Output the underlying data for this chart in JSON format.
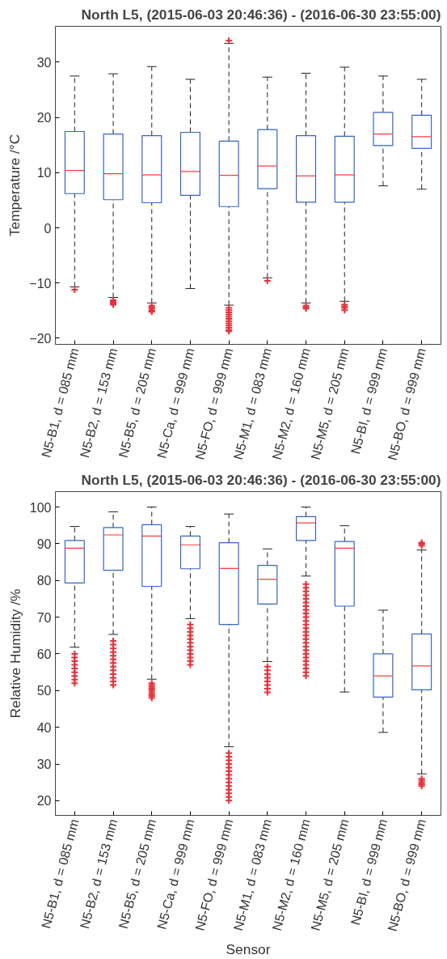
{
  "chart_data": [
    {
      "type": "box",
      "title": "North L5, (2015-06-03 20:46:36) - (2016-06-30 23:55:00)",
      "ylabel": "Temperature /°C",
      "categories": [
        "N5-B1, d = 085 mm",
        "N5-B2, d = 153 mm",
        "N5-B5, d = 205 mm",
        "N5-Ca, d = 999 mm",
        "N5-FO, d = 999 mm",
        "N5-M1, d = 083 mm",
        "N5-M2, d = 160 mm",
        "N5-M5, d = 205 mm",
        "N5-BI, d = 999 mm",
        "N5-BO, d = 999 mm"
      ],
      "ylim": [
        -21.1,
        36.5
      ],
      "yticks": [
        -20,
        -10,
        0,
        10,
        20,
        30
      ],
      "grid": false,
      "marker": "cross",
      "series": [
        {
          "color": "#3565c4",
          "boxes": [
            {
              "low": -10.7,
              "q1": 6.2,
              "median": 10.4,
              "q3": 17.45,
              "high": 27.5,
              "outliers": [
                -11.2
              ]
            },
            {
              "low": -12.6,
              "q1": 5.1,
              "median": 9.8,
              "q3": 17.0,
              "high": 27.9,
              "outliers": [
                -13.1,
                -13.4,
                -13.7,
                -13.9
              ]
            },
            {
              "low": -13.6,
              "q1": 4.55,
              "median": 9.6,
              "q3": 16.7,
              "high": 29.2,
              "outliers": [
                -14.1,
                -14.4,
                -14.7,
                -15.0,
                -15.2
              ]
            },
            {
              "low": -11.0,
              "q1": 5.9,
              "median": 10.2,
              "q3": 17.3,
              "high": 26.9
            },
            {
              "low": -14.0,
              "q1": 3.85,
              "median": 9.5,
              "q3": 15.7,
              "high": 33.4,
              "outliers": [
                33.9,
                -14.5,
                -14.9,
                -15.3,
                -15.7,
                -16.1,
                -16.5,
                -16.9,
                -17.3,
                -17.7,
                -18.1,
                -18.5,
                -18.7
              ]
            },
            {
              "low": -9.05,
              "q1": 7.1,
              "median": 11.2,
              "q3": 17.8,
              "high": 27.3,
              "outliers": [
                -9.6
              ]
            },
            {
              "low": -13.6,
              "q1": 4.65,
              "median": 9.4,
              "q3": 16.7,
              "high": 28.0,
              "outliers": [
                -14.1,
                -14.4,
                -14.6
              ]
            },
            {
              "low": -13.3,
              "q1": 4.65,
              "median": 9.6,
              "q3": 16.6,
              "high": 29.1,
              "outliers": [
                -13.9,
                -14.2,
                -14.5,
                -14.9
              ]
            },
            {
              "low": 7.6,
              "q1": 14.9,
              "median": 17.0,
              "q3": 20.9,
              "high": 27.5
            },
            {
              "low": 7.0,
              "q1": 14.4,
              "median": 16.5,
              "q3": 20.4,
              "high": 26.9
            }
          ]
        }
      ]
    },
    {
      "type": "box",
      "title": "North L5, (2015-06-03 20:46:36) - (2016-06-30 23:55:00)",
      "ylabel": "Relative Humidity /%",
      "xlabel": "Sensor",
      "categories": [
        "N5-B1, d = 085 mm",
        "N5-B2, d = 153 mm",
        "N5-B5, d = 205 mm",
        "N5-Ca, d = 999 mm",
        "N5-FO, d = 999 mm",
        "N5-M1, d = 083 mm",
        "N5-M2, d = 160 mm",
        "N5-M5, d = 205 mm",
        "N5-BI, d = 999 mm",
        "N5-BO, d = 999 mm"
      ],
      "ylim": [
        16,
        104.2
      ],
      "yticks": [
        20,
        30,
        40,
        50,
        60,
        70,
        80,
        90,
        100
      ],
      "grid": false,
      "marker": "cross",
      "series": [
        {
          "color": "#3565c4",
          "boxes": [
            {
              "low": 61.8,
              "q1": 79.3,
              "median": 88.8,
              "q3": 90.9,
              "high": 94.7,
              "outliers": [
                52,
                53,
                54,
                55,
                56,
                57,
                58,
                59,
                60
              ]
            },
            {
              "low": 65.3,
              "q1": 82.8,
              "median": 92.4,
              "q3": 94.4,
              "high": 98.7,
              "outliers": [
                51.5,
                52.5,
                53.5,
                54.5,
                55.5,
                56.5,
                57.5,
                58.5,
                59.5,
                60.5,
                61.5,
                62.5,
                63.5
              ]
            },
            {
              "low": 53.1,
              "q1": 78.4,
              "median": 92.1,
              "q3": 95.2,
              "high": 100,
              "outliers": [
                48,
                48.5,
                49,
                49.5,
                50,
                50.5,
                51,
                51.5,
                52
              ]
            },
            {
              "low": 69.6,
              "q1": 83.2,
              "median": 89.7,
              "q3": 92.1,
              "high": 94.7,
              "outliers": [
                57,
                58,
                59,
                60,
                61,
                62,
                63,
                64,
                65,
                66,
                67,
                68
              ]
            },
            {
              "low": 34.7,
              "q1": 68.0,
              "median": 83.3,
              "q3": 90.3,
              "high": 98.1,
              "outliers": [
                20,
                21,
                22,
                23,
                24,
                25,
                26,
                27,
                28,
                29,
                30,
                31,
                32,
                33
              ]
            },
            {
              "low": 57.9,
              "q1": 73.6,
              "median": 80.3,
              "q3": 84.1,
              "high": 88.6,
              "outliers": [
                49.5,
                50.5,
                51.5,
                52.5,
                53.5,
                54.5,
                55.5,
                56.5
              ]
            },
            {
              "low": 81.2,
              "q1": 90.9,
              "median": 95.7,
              "q3": 97.4,
              "high": 100,
              "outliers": [
                54,
                55,
                56,
                57,
                58,
                59,
                60,
                61,
                62,
                63,
                64,
                65,
                66,
                67,
                68,
                69,
                70,
                71,
                72,
                73,
                74,
                75,
                76,
                77,
                78,
                79
              ]
            },
            {
              "low": 49.6,
              "q1": 73.0,
              "median": 88.8,
              "q3": 90.6,
              "high": 94.9
            },
            {
              "low": 38.6,
              "q1": 48.2,
              "median": 54.0,
              "q3": 60.0,
              "high": 71.9
            },
            {
              "low": 27.3,
              "q1": 50.2,
              "median": 56.7,
              "q3": 65.4,
              "high": 88.3,
              "outliers": [
                24,
                24.5,
                25,
                25.5,
                26,
                89.5,
                90,
                90.3
              ]
            }
          ]
        }
      ]
    }
  ]
}
